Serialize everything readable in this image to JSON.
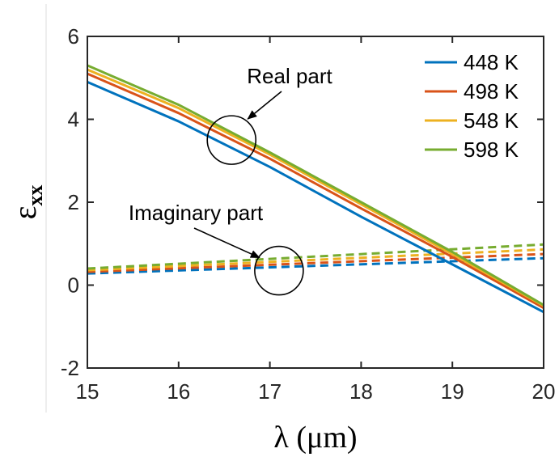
{
  "chart_data": {
    "type": "line",
    "xlabel": "λ (μm)",
    "ylabel": {
      "main": "ε",
      "subscript": "xx"
    },
    "xlim": [
      15,
      20
    ],
    "ylim": [
      -2,
      6
    ],
    "xticks": [
      15,
      16,
      17,
      18,
      19,
      20
    ],
    "yticks": [
      -2,
      0,
      2,
      4,
      6
    ],
    "grid": false,
    "legend_position": "top-right",
    "annotations": [
      {
        "text": "Real part",
        "target": [
          16.58,
          3.5
        ]
      },
      {
        "text": "Imaginary part",
        "target": [
          17.1,
          0.35
        ]
      }
    ],
    "series": [
      {
        "name": "448 K",
        "color": "#0072BD",
        "real": {
          "x": [
            15,
            16,
            17,
            18,
            19,
            20
          ],
          "y": [
            4.9,
            3.95,
            2.85,
            1.65,
            0.5,
            -0.65
          ]
        },
        "imaginary": {
          "x": [
            15,
            20
          ],
          "y": [
            0.28,
            0.65
          ]
        }
      },
      {
        "name": "498 K",
        "color": "#D95319",
        "real": {
          "x": [
            15,
            16,
            17,
            18,
            19,
            20
          ],
          "y": [
            5.1,
            4.15,
            3.05,
            1.85,
            0.68,
            -0.55
          ]
        },
        "imaginary": {
          "x": [
            15,
            20
          ],
          "y": [
            0.32,
            0.75
          ]
        }
      },
      {
        "name": "548 K",
        "color": "#EDB120",
        "real": {
          "x": [
            15,
            16,
            17,
            18,
            19,
            20
          ],
          "y": [
            5.2,
            4.27,
            3.15,
            1.95,
            0.75,
            -0.5
          ]
        },
        "imaginary": {
          "x": [
            15,
            20
          ],
          "y": [
            0.36,
            0.86
          ]
        }
      },
      {
        "name": "598 K",
        "color": "#77AC30",
        "real": {
          "x": [
            15,
            16,
            17,
            18,
            19,
            20
          ],
          "y": [
            5.3,
            4.35,
            3.2,
            2.0,
            0.8,
            -0.48
          ]
        },
        "imaginary": {
          "x": [
            15,
            20
          ],
          "y": [
            0.4,
            0.98
          ]
        }
      }
    ]
  }
}
